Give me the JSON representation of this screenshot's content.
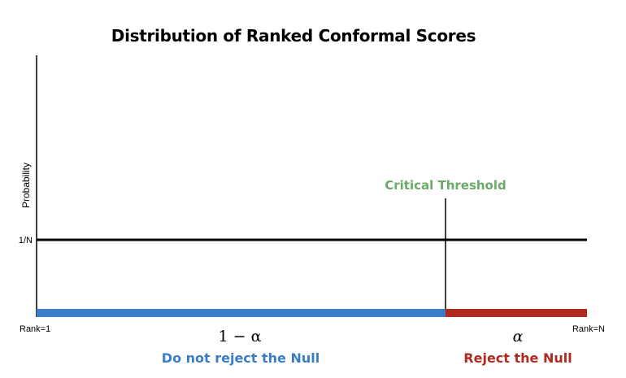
{
  "title": "Distribution of Ranked Conformal Scores",
  "y_axis_label": "Probability",
  "y_tick_label": "1/N",
  "x_left_label": "Rank=1",
  "x_right_label": "Rank=N",
  "threshold_label": "Critical Threshold",
  "left_region": {
    "math": "1 − α",
    "label": "Do not reject the Null"
  },
  "right_region": {
    "math": "α",
    "label": "Reject the Null"
  },
  "colors": {
    "accept": "#3a7dc9",
    "reject": "#b02a20",
    "threshold": "#6aa96a",
    "axis": "#000000"
  }
}
